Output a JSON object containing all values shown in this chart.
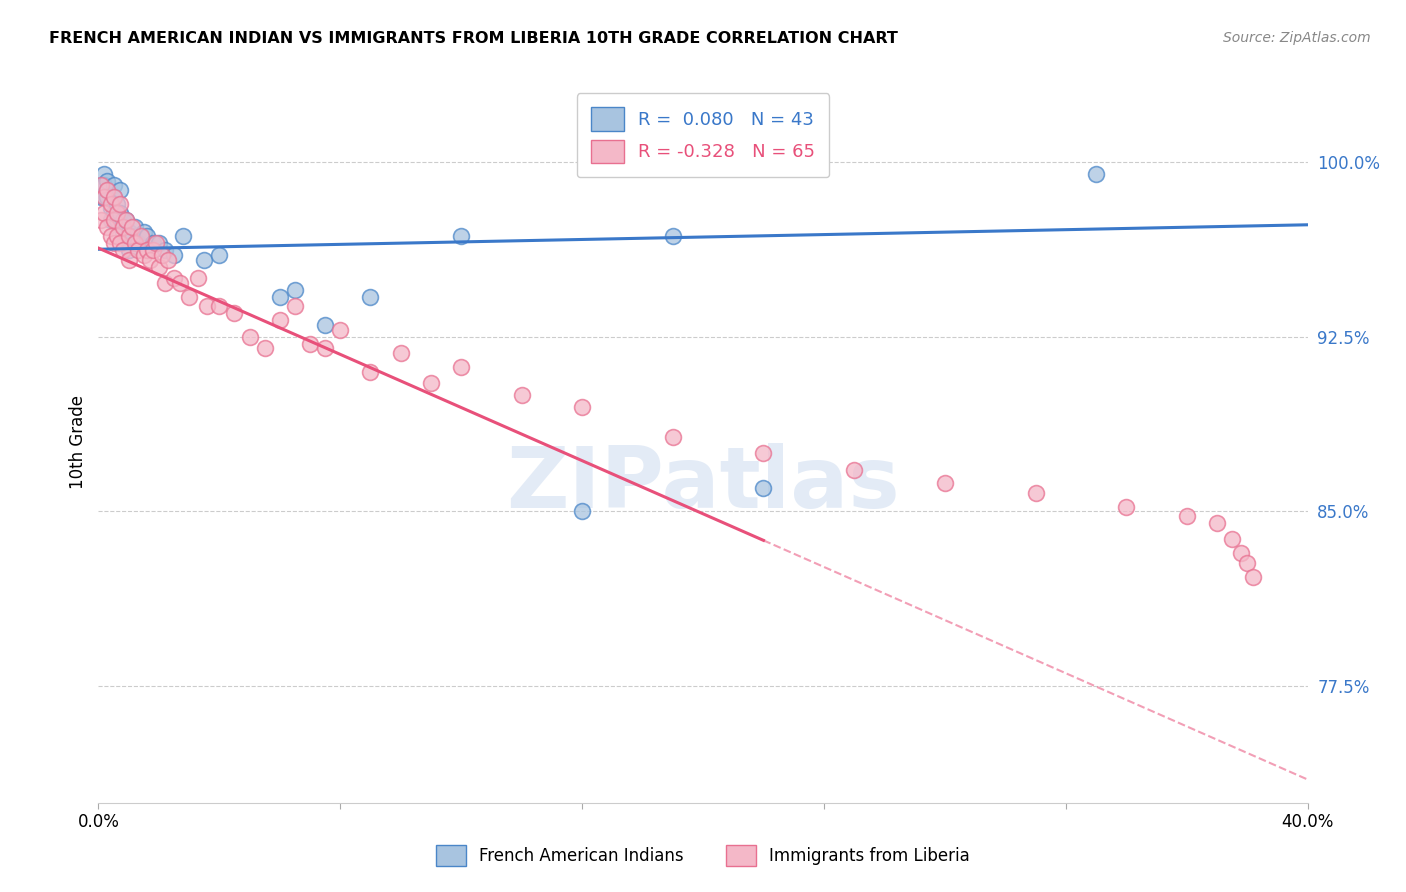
{
  "title": "FRENCH AMERICAN INDIAN VS IMMIGRANTS FROM LIBERIA 10TH GRADE CORRELATION CHART",
  "source": "Source: ZipAtlas.com",
  "ylabel": "10th Grade",
  "ytick_labels": [
    "77.5%",
    "85.0%",
    "92.5%",
    "100.0%"
  ],
  "ytick_values": [
    0.775,
    0.85,
    0.925,
    1.0
  ],
  "xlim": [
    0.0,
    0.4
  ],
  "ylim": [
    0.725,
    1.035
  ],
  "blue_R": 0.08,
  "blue_N": 43,
  "pink_R": -0.328,
  "pink_N": 65,
  "blue_color": "#a8c4e0",
  "pink_color": "#f4b8c8",
  "blue_edge_color": "#4a86c8",
  "pink_edge_color": "#e87090",
  "blue_line_color": "#3a78c9",
  "pink_line_color": "#e8507a",
  "watermark": "ZIPatlas",
  "blue_scatter_x": [
    0.001,
    0.001,
    0.002,
    0.002,
    0.002,
    0.003,
    0.003,
    0.003,
    0.004,
    0.004,
    0.005,
    0.005,
    0.005,
    0.006,
    0.006,
    0.007,
    0.007,
    0.008,
    0.008,
    0.009,
    0.01,
    0.01,
    0.011,
    0.012,
    0.013,
    0.015,
    0.016,
    0.018,
    0.02,
    0.022,
    0.025,
    0.028,
    0.035,
    0.04,
    0.06,
    0.065,
    0.075,
    0.09,
    0.12,
    0.16,
    0.19,
    0.22,
    0.33
  ],
  "blue_scatter_y": [
    0.99,
    0.985,
    0.995,
    0.99,
    0.985,
    0.988,
    0.992,
    0.985,
    0.98,
    0.975,
    0.99,
    0.985,
    0.978,
    0.982,
    0.975,
    0.988,
    0.978,
    0.975,
    0.97,
    0.975,
    0.97,
    0.962,
    0.968,
    0.972,
    0.965,
    0.97,
    0.968,
    0.965,
    0.965,
    0.962,
    0.96,
    0.968,
    0.958,
    0.96,
    0.942,
    0.945,
    0.93,
    0.942,
    0.968,
    0.85,
    0.968,
    0.86,
    0.995
  ],
  "pink_scatter_x": [
    0.001,
    0.001,
    0.002,
    0.002,
    0.003,
    0.003,
    0.004,
    0.004,
    0.005,
    0.005,
    0.005,
    0.006,
    0.006,
    0.007,
    0.007,
    0.008,
    0.008,
    0.009,
    0.01,
    0.01,
    0.011,
    0.012,
    0.013,
    0.014,
    0.015,
    0.016,
    0.017,
    0.018,
    0.019,
    0.02,
    0.021,
    0.022,
    0.023,
    0.025,
    0.027,
    0.03,
    0.033,
    0.036,
    0.04,
    0.045,
    0.05,
    0.055,
    0.06,
    0.065,
    0.07,
    0.075,
    0.08,
    0.09,
    0.1,
    0.11,
    0.12,
    0.14,
    0.16,
    0.19,
    0.22,
    0.25,
    0.28,
    0.31,
    0.34,
    0.36,
    0.37,
    0.375,
    0.378,
    0.38,
    0.382
  ],
  "pink_scatter_y": [
    0.99,
    0.975,
    0.985,
    0.978,
    0.988,
    0.972,
    0.982,
    0.968,
    0.985,
    0.975,
    0.965,
    0.978,
    0.968,
    0.982,
    0.965,
    0.972,
    0.962,
    0.975,
    0.968,
    0.958,
    0.972,
    0.965,
    0.962,
    0.968,
    0.96,
    0.962,
    0.958,
    0.962,
    0.965,
    0.955,
    0.96,
    0.948,
    0.958,
    0.95,
    0.948,
    0.942,
    0.95,
    0.938,
    0.938,
    0.935,
    0.925,
    0.92,
    0.932,
    0.938,
    0.922,
    0.92,
    0.928,
    0.91,
    0.918,
    0.905,
    0.912,
    0.9,
    0.895,
    0.882,
    0.875,
    0.868,
    0.862,
    0.858,
    0.852,
    0.848,
    0.845,
    0.838,
    0.832,
    0.828,
    0.822
  ]
}
